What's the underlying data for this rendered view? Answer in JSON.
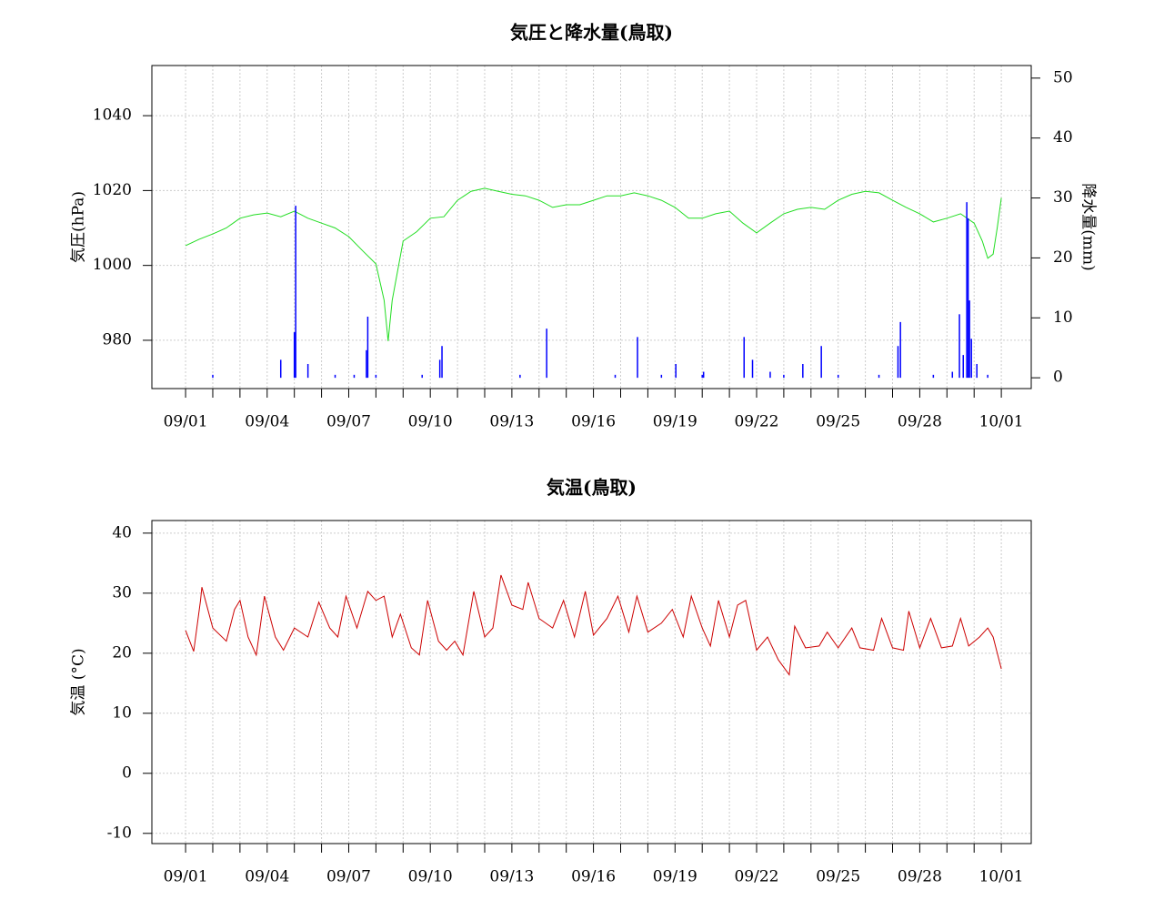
{
  "chart_data": [
    {
      "type": "combo",
      "title": "気圧と降水量(鳥取)",
      "ylabel": "気圧(hPa)",
      "y2label": "降水量(mm)",
      "xlim": [
        -1.24,
        31.1
      ],
      "xticks": [
        {
          "value": 0,
          "label": "09/01"
        },
        {
          "value": 3,
          "label": "09/04"
        },
        {
          "value": 6,
          "label": "09/07"
        },
        {
          "value": 9,
          "label": "09/10"
        },
        {
          "value": 12,
          "label": "09/13"
        },
        {
          "value": 15,
          "label": "09/16"
        },
        {
          "value": 18,
          "label": "09/19"
        },
        {
          "value": 21,
          "label": "09/22"
        },
        {
          "value": 24,
          "label": "09/25"
        },
        {
          "value": 27,
          "label": "09/28"
        },
        {
          "value": 30,
          "label": "10/01"
        }
      ],
      "x_minor_ticks": [
        1,
        2,
        4,
        5,
        7,
        8,
        10,
        11,
        13,
        14,
        16,
        17,
        19,
        20,
        22,
        23,
        25,
        26,
        28,
        29
      ],
      "ylim": [
        967.1,
        1053.4
      ],
      "yticks": [
        980,
        1000,
        1020,
        1040
      ],
      "y2lim": [
        -1.8,
        52.1
      ],
      "y2ticks": [
        0,
        10,
        20,
        30,
        40,
        50
      ],
      "grid": true,
      "series": [
        {
          "type": "line",
          "color": "#22dd22",
          "x": [
            0,
            0.5,
            1,
            1.5,
            2,
            2.5,
            3,
            3.5,
            4,
            4.5,
            5,
            5.5,
            6,
            6.5,
            7,
            7.3,
            7.45,
            7.6,
            8,
            8.5,
            9,
            9.5,
            10,
            10.5,
            11,
            11.5,
            12,
            12.5,
            13,
            13.5,
            14,
            14.5,
            15,
            15.5,
            16,
            16.5,
            17,
            17.5,
            18,
            18.5,
            19,
            19.5,
            20,
            20.5,
            21,
            21.5,
            22,
            22.5,
            23,
            23.5,
            24,
            24.5,
            25,
            25.5,
            26,
            26.5,
            27,
            27.5,
            28,
            28.5,
            29,
            29.3,
            29.5,
            29.7,
            29.85,
            30
          ],
          "values": [
            1005.3,
            1007,
            1008.4,
            1010,
            1012.6,
            1013.5,
            1014,
            1013,
            1014.5,
            1012.6,
            1011.3,
            1010,
            1007.7,
            1004,
            1000.4,
            990.7,
            979.8,
            990.7,
            1006.5,
            1009,
            1012.6,
            1013,
            1017.4,
            1019.8,
            1020.6,
            1019.8,
            1019,
            1018.6,
            1017.4,
            1015.5,
            1016.2,
            1016.2,
            1017.4,
            1018.6,
            1018.6,
            1019.4,
            1018.6,
            1017.4,
            1015.5,
            1012.6,
            1012.6,
            1013.8,
            1014.5,
            1011.3,
            1008.7,
            1011.3,
            1013.8,
            1015,
            1015.5,
            1015,
            1017.4,
            1019,
            1019.8,
            1019.4,
            1017.4,
            1015.5,
            1013.8,
            1011.6,
            1012.6,
            1013.8,
            1011.3,
            1006.5,
            1001.9,
            1003,
            1010,
            1018
          ]
        },
        {
          "type": "bar",
          "axis": "y2",
          "color": "#0000ff",
          "x": [
            1,
            3.5,
            4,
            4.05,
            4.5,
            5.5,
            6.2,
            6.65,
            6.7,
            7,
            8.7,
            9.35,
            9.43,
            12.3,
            13.28,
            15.8,
            16.62,
            17.5,
            18.03,
            19,
            19.05,
            20.54,
            20.85,
            21.5,
            22,
            22.7,
            23.38,
            24,
            25.5,
            26.2,
            26.29,
            27.5,
            28.2,
            28.46,
            28.6,
            28.73,
            28.78,
            28.83,
            28.9,
            29.1,
            29.5
          ],
          "values": [
            0.5,
            3,
            7.6,
            28.7,
            2.3,
            0.5,
            0.5,
            4.6,
            10.2,
            0.5,
            0.5,
            3,
            5.3,
            0.5,
            8.2,
            0.5,
            6.8,
            0.5,
            2.3,
            0.5,
            1,
            6.8,
            3,
            1,
            0.5,
            2.3,
            5.3,
            0.5,
            0.5,
            5.3,
            9.3,
            0.5,
            1,
            10.6,
            3.8,
            29.3,
            26.6,
            12.9,
            6.5,
            2.3,
            0.5
          ]
        }
      ]
    },
    {
      "type": "line",
      "title": "気温(鳥取)",
      "ylabel": "気温 (°C)",
      "xlim": [
        -1.24,
        31.1
      ],
      "xticks": [
        {
          "value": 0,
          "label": "09/01"
        },
        {
          "value": 3,
          "label": "09/04"
        },
        {
          "value": 6,
          "label": "09/07"
        },
        {
          "value": 9,
          "label": "09/10"
        },
        {
          "value": 12,
          "label": "09/13"
        },
        {
          "value": 15,
          "label": "09/16"
        },
        {
          "value": 18,
          "label": "09/19"
        },
        {
          "value": 21,
          "label": "09/22"
        },
        {
          "value": 24,
          "label": "09/25"
        },
        {
          "value": 27,
          "label": "09/28"
        },
        {
          "value": 30,
          "label": "10/01"
        }
      ],
      "x_minor_ticks": [
        1,
        2,
        4,
        5,
        7,
        8,
        10,
        11,
        13,
        14,
        16,
        17,
        19,
        20,
        22,
        23,
        25,
        26,
        28,
        29
      ],
      "ylim": [
        -11.7,
        42.1
      ],
      "yticks": [
        -10,
        0,
        10,
        20,
        30,
        40
      ],
      "grid": true,
      "series": [
        {
          "type": "line",
          "color": "#cc0000",
          "x": [
            0,
            0.3,
            0.55,
            0.6,
            1,
            1.5,
            1.8,
            2,
            2.3,
            2.6,
            2.9,
            3.3,
            3.6,
            4,
            4.5,
            4.9,
            5.3,
            5.6,
            5.9,
            6.3,
            6.7,
            7,
            7.3,
            7.6,
            7.9,
            8.3,
            8.6,
            8.9,
            9.3,
            9.6,
            9.9,
            10.2,
            10.6,
            11,
            11.3,
            11.6,
            12,
            12.4,
            12.6,
            13,
            13.5,
            13.9,
            14.3,
            14.7,
            15,
            15.5,
            15.9,
            16.3,
            16.6,
            17,
            17.5,
            17.9,
            18.3,
            18.6,
            19,
            19.3,
            19.6,
            20,
            20.3,
            20.6,
            21,
            21.4,
            21.8,
            22.2,
            22.4,
            22.8,
            23.3,
            23.6,
            24,
            24.5,
            24.8,
            25.3,
            25.6,
            26,
            26.4,
            26.6,
            27,
            27.4,
            27.8,
            28.2,
            28.5,
            28.8,
            29.2,
            29.5,
            29.7,
            30
          ],
          "values": [
            23.8,
            20.3,
            28.8,
            31,
            24.2,
            22,
            27.3,
            28.8,
            22.7,
            19.7,
            29.5,
            22.7,
            20.5,
            24.2,
            22.7,
            28.5,
            24.2,
            22.7,
            29.5,
            24.2,
            30.3,
            28.8,
            29.5,
            22.7,
            26.5,
            20.9,
            19.7,
            28.8,
            22,
            20.5,
            22,
            19.7,
            30.3,
            22.7,
            24.2,
            33,
            28,
            27.3,
            31.8,
            25.8,
            24.2,
            28.8,
            22.7,
            30.3,
            23,
            25.8,
            29.5,
            23.5,
            29.5,
            23.5,
            25,
            27.3,
            22.7,
            29.5,
            24.2,
            21.2,
            28.8,
            22.7,
            28,
            28.8,
            20.5,
            22.7,
            18.9,
            16.4,
            24.5,
            20.9,
            21.2,
            23.5,
            20.9,
            24.2,
            20.9,
            20.5,
            25.8,
            20.9,
            20.5,
            27,
            20.9,
            25.8,
            20.9,
            21.2,
            25.8,
            21.2,
            22.7,
            24.2,
            22.7,
            17.4
          ]
        }
      ]
    }
  ]
}
